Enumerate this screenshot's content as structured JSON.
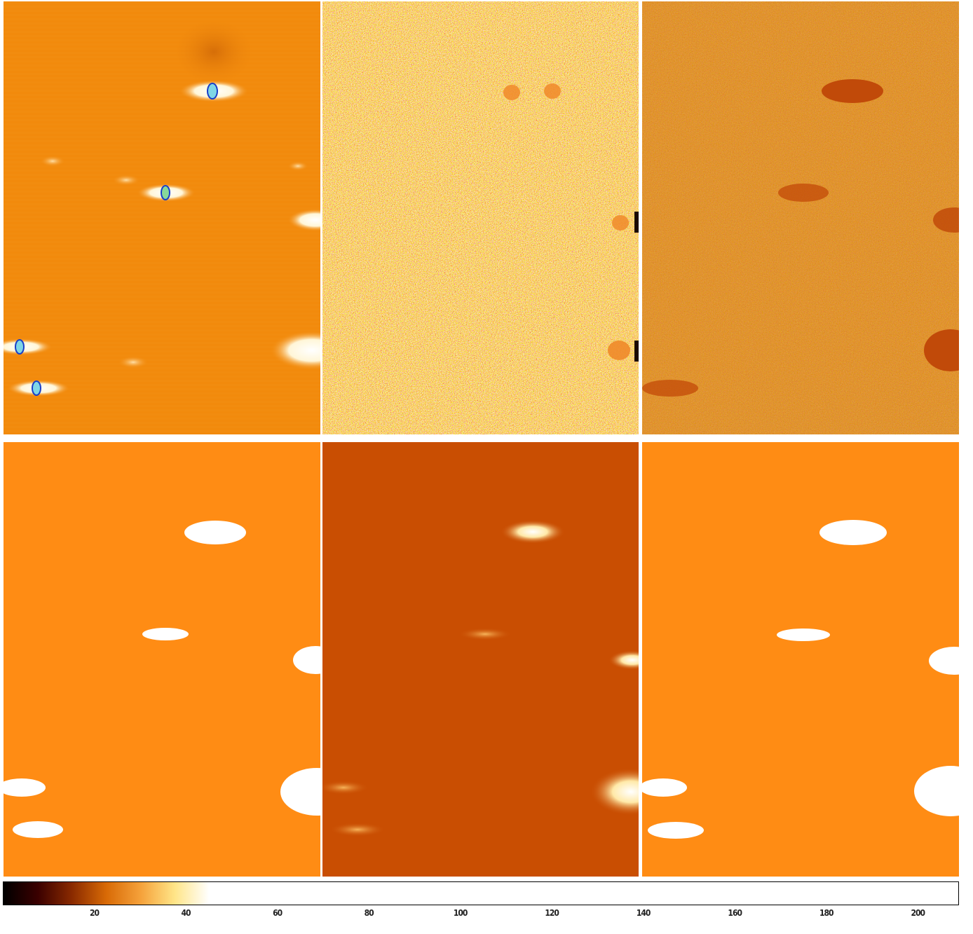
{
  "colors": {
    "orange_smooth": "#f28a0c",
    "orange_mask": "#ff8c14",
    "dark_orange": "#c94e02",
    "residual_dark": "#c14a09",
    "source_white": "#ffffff",
    "contour_blue": "#1a3fc8"
  },
  "colormap": [
    "#000000",
    "#3a0000",
    "#8a2a00",
    "#d86a06",
    "#f5a13a",
    "#ffe588",
    "#ffffff"
  ],
  "colorbar_ticks": [
    "20",
    "40",
    "60",
    "80",
    "100",
    "120",
    "140",
    "160",
    "180",
    "200"
  ],
  "colorbar_tick_values": [
    20,
    40,
    60,
    80,
    100,
    120,
    140,
    160,
    180,
    200
  ],
  "colorbar_range": [
    0,
    209
  ]
}
